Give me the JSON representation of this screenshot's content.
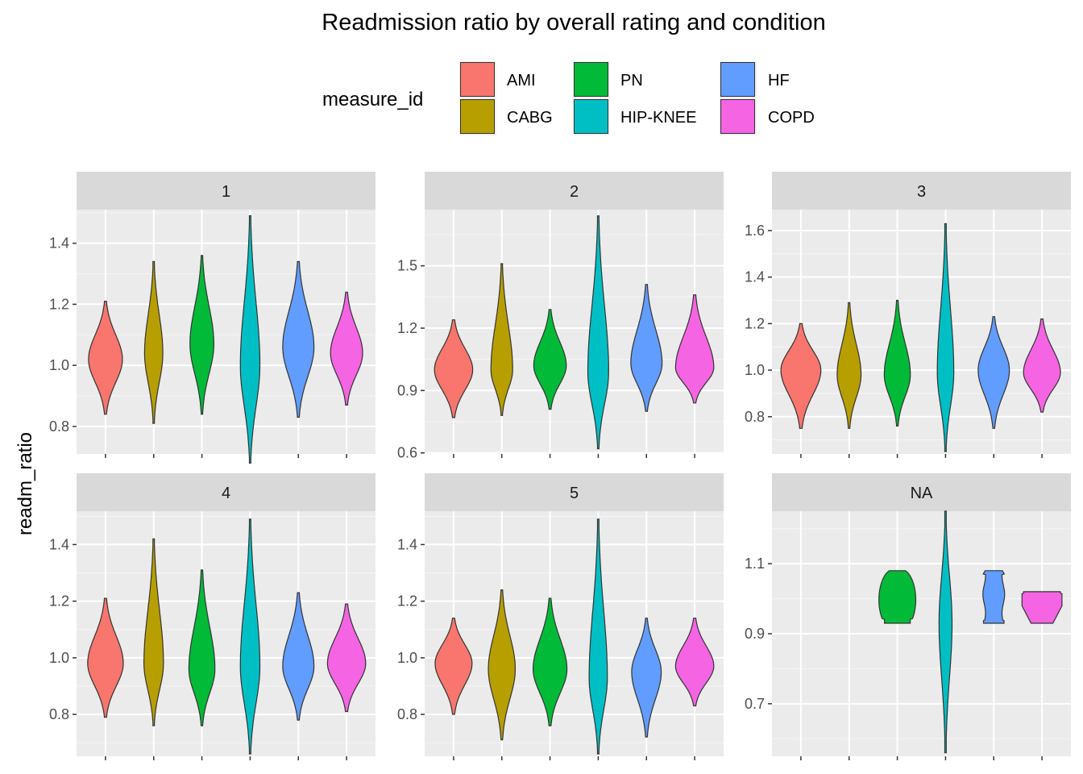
{
  "chart_data": {
    "type": "violin",
    "title": "Readmission ratio by overall rating and condition",
    "ylabel": "readm_ratio",
    "xlabel": "",
    "legend": {
      "title": "measure_id",
      "position": "top",
      "entries": [
        {
          "name": "AMI",
          "color": "#F8766D"
        },
        {
          "name": "CABG",
          "color": "#B79F00"
        },
        {
          "name": "PN",
          "color": "#00BA38"
        },
        {
          "name": "HIP-KNEE",
          "color": "#00BFC4"
        },
        {
          "name": "HF",
          "color": "#619CFF"
        },
        {
          "name": "COPD",
          "color": "#F564E3"
        }
      ]
    },
    "grid": true,
    "facets": [
      {
        "label": "1",
        "ylim": [
          0.71,
          1.51
        ],
        "yticks": [
          0.8,
          1.0,
          1.2,
          1.4
        ],
        "ytick_labels": [
          "0.8",
          "1.0",
          "1.2",
          "1.4"
        ],
        "violins": [
          {
            "measure": "AMI",
            "min": 0.84,
            "max": 1.21,
            "mode": 1.02,
            "width": 0.78
          },
          {
            "measure": "CABG",
            "min": 0.81,
            "max": 1.34,
            "mode": 1.04,
            "width": 0.42
          },
          {
            "measure": "PN",
            "min": 0.84,
            "max": 1.36,
            "mode": 1.07,
            "width": 0.55
          },
          {
            "measure": "HIP-KNEE",
            "min": 0.68,
            "max": 1.49,
            "mode": 1.0,
            "width": 0.45
          },
          {
            "measure": "HF",
            "min": 0.83,
            "max": 1.34,
            "mode": 1.06,
            "width": 0.72
          },
          {
            "measure": "COPD",
            "min": 0.87,
            "max": 1.24,
            "mode": 1.04,
            "width": 0.74
          }
        ]
      },
      {
        "label": "2",
        "ylim": [
          0.595,
          1.77
        ],
        "yticks": [
          0.6,
          0.9,
          1.2,
          1.5
        ],
        "ytick_labels": [
          "0.6",
          "0.9",
          "1.2",
          "1.5"
        ],
        "violins": [
          {
            "measure": "AMI",
            "min": 0.77,
            "max": 1.24,
            "mode": 1.0,
            "width": 0.88
          },
          {
            "measure": "CABG",
            "min": 0.78,
            "max": 1.51,
            "mode": 1.0,
            "width": 0.5
          },
          {
            "measure": "PN",
            "min": 0.81,
            "max": 1.29,
            "mode": 1.02,
            "width": 0.75
          },
          {
            "measure": "HIP-KNEE",
            "min": 0.62,
            "max": 1.74,
            "mode": 0.99,
            "width": 0.48
          },
          {
            "measure": "HF",
            "min": 0.8,
            "max": 1.41,
            "mode": 1.03,
            "width": 0.72
          },
          {
            "measure": "COPD",
            "min": 0.84,
            "max": 1.36,
            "mode": 1.01,
            "width": 0.88
          }
        ]
      },
      {
        "label": "3",
        "ylim": [
          0.64,
          1.69
        ],
        "yticks": [
          0.8,
          1.0,
          1.2,
          1.4,
          1.6
        ],
        "ytick_labels": [
          "0.8",
          "1.0",
          "1.2",
          "1.4",
          "1.6"
        ],
        "violins": [
          {
            "measure": "AMI",
            "min": 0.75,
            "max": 1.2,
            "mode": 1.0,
            "width": 0.92
          },
          {
            "measure": "CABG",
            "min": 0.75,
            "max": 1.29,
            "mode": 0.98,
            "width": 0.55
          },
          {
            "measure": "PN",
            "min": 0.76,
            "max": 1.3,
            "mode": 0.98,
            "width": 0.6
          },
          {
            "measure": "HIP-KNEE",
            "min": 0.65,
            "max": 1.63,
            "mode": 0.99,
            "width": 0.38
          },
          {
            "measure": "HF",
            "min": 0.75,
            "max": 1.23,
            "mode": 1.0,
            "width": 0.72
          },
          {
            "measure": "COPD",
            "min": 0.82,
            "max": 1.22,
            "mode": 0.99,
            "width": 0.85
          }
        ]
      },
      {
        "label": "4",
        "ylim": [
          0.652,
          1.518
        ],
        "yticks": [
          0.8,
          1.0,
          1.2,
          1.4
        ],
        "ytick_labels": [
          "0.8",
          "1.0",
          "1.2",
          "1.4"
        ],
        "violins": [
          {
            "measure": "AMI",
            "min": 0.79,
            "max": 1.21,
            "mode": 0.98,
            "width": 0.82
          },
          {
            "measure": "CABG",
            "min": 0.76,
            "max": 1.42,
            "mode": 0.98,
            "width": 0.45
          },
          {
            "measure": "PN",
            "min": 0.76,
            "max": 1.31,
            "mode": 0.96,
            "width": 0.6
          },
          {
            "measure": "HIP-KNEE",
            "min": 0.66,
            "max": 1.49,
            "mode": 0.97,
            "width": 0.45
          },
          {
            "measure": "HF",
            "min": 0.78,
            "max": 1.23,
            "mode": 0.97,
            "width": 0.72
          },
          {
            "measure": "COPD",
            "min": 0.81,
            "max": 1.19,
            "mode": 0.98,
            "width": 0.88
          }
        ]
      },
      {
        "label": "5",
        "ylim": [
          0.652,
          1.518
        ],
        "yticks": [
          0.8,
          1.0,
          1.2,
          1.4
        ],
        "ytick_labels": [
          "0.8",
          "1.0",
          "1.2",
          "1.4"
        ],
        "violins": [
          {
            "measure": "AMI",
            "min": 0.8,
            "max": 1.14,
            "mode": 0.98,
            "width": 0.85
          },
          {
            "measure": "CABG",
            "min": 0.71,
            "max": 1.24,
            "mode": 0.96,
            "width": 0.62
          },
          {
            "measure": "PN",
            "min": 0.76,
            "max": 1.21,
            "mode": 0.96,
            "width": 0.78
          },
          {
            "measure": "HIP-KNEE",
            "min": 0.66,
            "max": 1.49,
            "mode": 0.93,
            "width": 0.42
          },
          {
            "measure": "HF",
            "min": 0.72,
            "max": 1.14,
            "mode": 0.95,
            "width": 0.68
          },
          {
            "measure": "COPD",
            "min": 0.83,
            "max": 1.14,
            "mode": 0.97,
            "width": 0.88
          }
        ]
      },
      {
        "label": "NA",
        "ylim": [
          0.55,
          1.25
        ],
        "yticks": [
          0.7,
          0.9,
          1.1
        ],
        "ytick_labels": [
          "0.7",
          "0.9",
          "1.1"
        ],
        "violins": [
          {
            "measure": "PN",
            "min": 0.93,
            "max": 1.08,
            "mode": 0.99,
            "width": 0.85,
            "shape": "blob"
          },
          {
            "measure": "HIP-KNEE",
            "min": 0.56,
            "max": 1.25,
            "mode": 0.93,
            "width": 0.3
          },
          {
            "measure": "HF",
            "min": 0.93,
            "max": 1.08,
            "mode": 1.02,
            "width": 0.5,
            "shape": "waisted"
          },
          {
            "measure": "COPD",
            "min": 0.93,
            "max": 1.02,
            "mode": 1.01,
            "width": 0.92,
            "shape": "flat-top"
          }
        ]
      }
    ]
  }
}
